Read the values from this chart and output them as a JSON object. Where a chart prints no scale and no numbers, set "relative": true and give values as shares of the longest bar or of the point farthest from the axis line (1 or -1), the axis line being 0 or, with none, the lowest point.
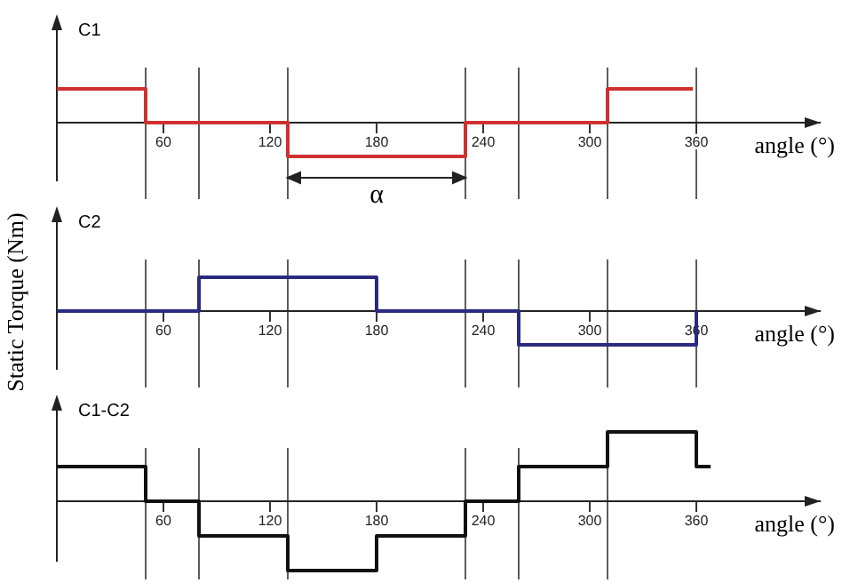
{
  "chart_data": [
    {
      "type": "step",
      "title": "C1",
      "xlabel": "angle (°)",
      "ylabel": "Static Torque (Nm)",
      "relative": true,
      "tick_labels": "x",
      "xlim": [
        0,
        430
      ],
      "xticks": [
        60,
        120,
        180,
        240,
        300,
        360
      ],
      "series": [
        {
          "color": "#d03030",
          "x": [
            0,
            50,
            130,
            230,
            310,
            358
          ],
          "values": [
            1,
            0,
            -1,
            0,
            1,
            1
          ]
        }
      ],
      "ref_lines": [
        {
          "axis": "x",
          "value": 50,
          "color": "#333333"
        },
        {
          "axis": "x",
          "value": 80,
          "color": "#333333"
        },
        {
          "axis": "x",
          "value": 130,
          "color": "#333333"
        },
        {
          "axis": "x",
          "value": 230,
          "color": "#333333"
        },
        {
          "axis": "x",
          "value": 260,
          "color": "#333333"
        },
        {
          "axis": "x",
          "value": 310,
          "color": "#333333"
        },
        {
          "axis": "x",
          "value": 360,
          "color": "#333333"
        }
      ],
      "annotations": [
        {
          "text": "α",
          "x": 180,
          "y": -1
        }
      ]
    },
    {
      "type": "step",
      "title": "C2",
      "xlabel": "angle (°)",
      "relative": true,
      "tick_labels": "x",
      "xlim": [
        0,
        430
      ],
      "xticks": [
        60,
        120,
        180,
        240,
        300,
        360
      ],
      "series": [
        {
          "color": "#2a2a80",
          "x": [
            0,
            80,
            180,
            260,
            360
          ],
          "values": [
            0,
            1,
            0,
            -1,
            0
          ]
        }
      ],
      "ref_lines": [
        {
          "axis": "x",
          "value": 50,
          "color": "#333333"
        },
        {
          "axis": "x",
          "value": 80,
          "color": "#333333"
        },
        {
          "axis": "x",
          "value": 130,
          "color": "#333333"
        },
        {
          "axis": "x",
          "value": 230,
          "color": "#333333"
        },
        {
          "axis": "x",
          "value": 260,
          "color": "#333333"
        },
        {
          "axis": "x",
          "value": 310,
          "color": "#333333"
        },
        {
          "axis": "x",
          "value": 360,
          "color": "#333333"
        }
      ]
    },
    {
      "type": "step",
      "title": "C1-C2",
      "xlabel": "angle (°)",
      "relative": true,
      "tick_labels": "x",
      "xlim": [
        0,
        430
      ],
      "xticks": [
        60,
        120,
        180,
        240,
        300,
        360
      ],
      "series": [
        {
          "color": "#111111",
          "x": [
            0,
            50,
            80,
            130,
            180,
            230,
            260,
            310,
            360,
            368
          ],
          "values": [
            0.5,
            0,
            -0.5,
            -1,
            -0.5,
            0,
            0.5,
            1,
            0.5,
            0.5
          ]
        }
      ],
      "ref_lines": [
        {
          "axis": "x",
          "value": 50,
          "color": "#333333"
        },
        {
          "axis": "x",
          "value": 80,
          "color": "#333333"
        },
        {
          "axis": "x",
          "value": 130,
          "color": "#333333"
        },
        {
          "axis": "x",
          "value": 230,
          "color": "#333333"
        },
        {
          "axis": "x",
          "value": 260,
          "color": "#333333"
        },
        {
          "axis": "x",
          "value": 310,
          "color": "#333333"
        }
      ]
    }
  ]
}
